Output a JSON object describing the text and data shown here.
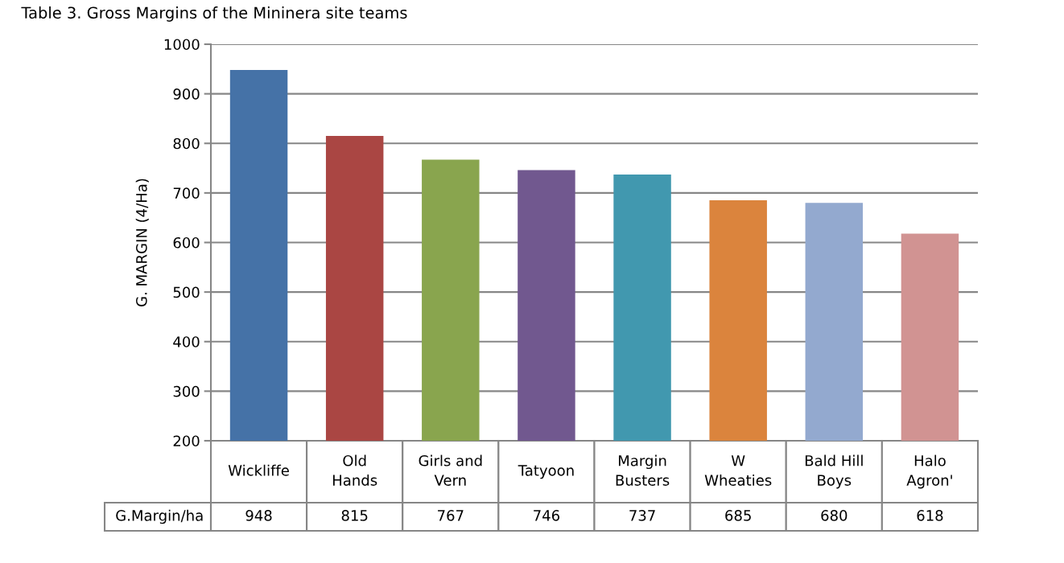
{
  "chart_data": {
    "type": "bar",
    "title": "Table 3. Gross Margins of the Mininera site teams",
    "ylabel": "G. MARGIN (4/Ha)",
    "categories": [
      "Wickliffe",
      "Old\nHands",
      "Girls and\nVern",
      "Tatyoon",
      "Margin\nBusters",
      "W\nWheaties",
      "Bald Hill\nBoys",
      "Halo\nAgron'"
    ],
    "series": [
      {
        "name": "G.Margin/ha",
        "values": [
          948,
          815,
          767,
          746,
          737,
          685,
          680,
          618
        ],
        "colors": [
          "#4572a7",
          "#aa4643",
          "#89a54e",
          "#71588f",
          "#4198af",
          "#db843d",
          "#93a9cf",
          "#d19392"
        ]
      }
    ],
    "ylim": [
      200,
      1000
    ],
    "yticks": [
      200,
      300,
      400,
      500,
      600,
      700,
      800,
      900,
      1000
    ],
    "grid": "y",
    "data_labels": true,
    "legend": false
  }
}
